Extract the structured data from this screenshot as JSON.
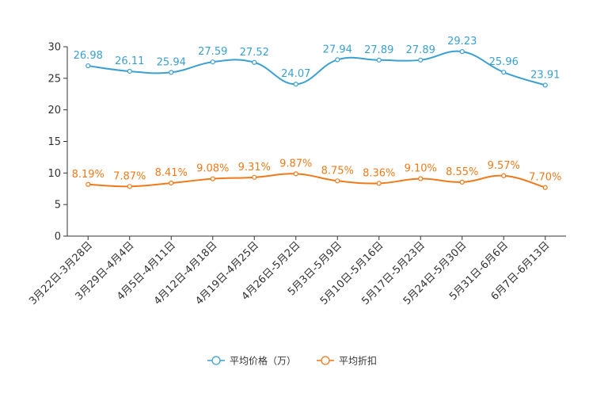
{
  "chart_data": {
    "type": "line",
    "title": "",
    "xlabel": "",
    "ylabel": "",
    "ylim": [
      0,
      30
    ],
    "yticks": [
      0,
      5,
      10,
      15,
      20,
      25,
      30
    ],
    "categories": [
      "3月22日-3月28日",
      "3月29日-4月4日",
      "4月5日-4月11日",
      "4月12日-4月18日",
      "4月19日-4月25日",
      "4月26日-5月2日",
      "5月3日-5月9日",
      "5月10日-5月16日",
      "5月17日-5月23日",
      "5月24日-5月30日",
      "5月31日-6月6日",
      "6月7日-6月13日"
    ],
    "series": [
      {
        "name": "平均价格（万）",
        "color": "#3ba0d0",
        "values": [
          26.98,
          26.11,
          25.94,
          27.59,
          27.52,
          24.07,
          27.94,
          27.89,
          27.89,
          29.23,
          25.96,
          23.91
        ],
        "labels": [
          "26.98",
          "26.11",
          "25.94",
          "27.59",
          "27.52",
          "24.07",
          "27.94",
          "27.89",
          "27.89",
          "29.23",
          "25.96",
          "23.91"
        ]
      },
      {
        "name": "平均折扣",
        "color": "#f07a1a",
        "values": [
          8.19,
          7.87,
          8.41,
          9.08,
          9.31,
          9.87,
          8.75,
          8.36,
          9.1,
          8.55,
          9.57,
          7.7
        ],
        "labels": [
          "8.19%",
          "7.87%",
          "8.41%",
          "9.08%",
          "9.31%",
          "9.87%",
          "8.75%",
          "8.36%",
          "9.10%",
          "8.55%",
          "9.57%",
          "7.70%"
        ]
      }
    ],
    "legend_position": "bottom-center",
    "grid": false
  }
}
